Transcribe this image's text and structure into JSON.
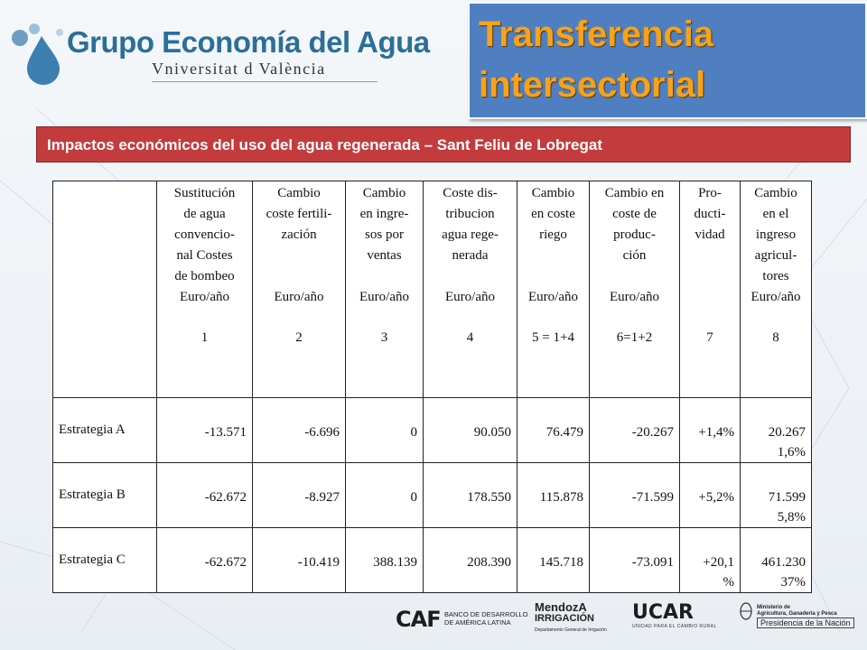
{
  "header": {
    "logo_title": "Grupo Economía del Agua",
    "logo_subtitle": "Vniversitat d València",
    "slide_title": "Transferencia intersectorial",
    "subtitle": "Impactos económicos del uso del agua regenerada – Sant Feliu de Lobregat"
  },
  "table": {
    "columns": [
      {
        "lines": [
          "Sustitución",
          "de agua",
          "convencio-",
          "nal Costes",
          "de bombeo"
        ],
        "unit": "Euro/año",
        "num": "1"
      },
      {
        "lines": [
          "Cambio",
          "coste fertili-",
          "zación"
        ],
        "unit": "Euro/año",
        "num": "2"
      },
      {
        "lines": [
          "Cambio",
          "en ingre-",
          "sos por",
          "ventas"
        ],
        "unit": "Euro/año",
        "num": "3"
      },
      {
        "lines": [
          "Coste dis-",
          "tribucion",
          "agua rege-",
          "nerada"
        ],
        "unit": "Euro/año",
        "num": "4"
      },
      {
        "lines": [
          "Cambio",
          "en coste",
          "riego"
        ],
        "unit": "Euro/año",
        "num": "5 = 1+4"
      },
      {
        "lines": [
          "Cambio en",
          "coste de",
          "produc-",
          "ción"
        ],
        "unit": "Euro/año",
        "num": "6=1+2"
      },
      {
        "lines": [
          "Pro-",
          "ducti-",
          "vidad"
        ],
        "unit": "",
        "num": "7"
      },
      {
        "lines": [
          "Cambio",
          "en el",
          "ingreso",
          "agricul-",
          "tores"
        ],
        "unit": "Euro/año",
        "num": "8"
      }
    ],
    "rows": [
      {
        "label": "Estrategia A",
        "cells": [
          [
            "-13.571"
          ],
          [
            "-6.696"
          ],
          [
            "0"
          ],
          [
            "90.050"
          ],
          [
            "76.479"
          ],
          [
            "-20.267"
          ],
          [
            "+1,4%"
          ],
          [
            "20.267",
            "1,6%"
          ]
        ]
      },
      {
        "label": "Estrategia B",
        "cells": [
          [
            "-62.672"
          ],
          [
            "-8.927"
          ],
          [
            "0"
          ],
          [
            "178.550"
          ],
          [
            "115.878"
          ],
          [
            "-71.599"
          ],
          [
            "+5,2%"
          ],
          [
            "71.599",
            "5,8%"
          ]
        ]
      },
      {
        "label": "Estrategia C",
        "cells": [
          [
            "-62.672"
          ],
          [
            "-10.419"
          ],
          [
            "388.139"
          ],
          [
            "208.390"
          ],
          [
            "145.718"
          ],
          [
            "-73.091"
          ],
          [
            "+20,1",
            "%"
          ],
          [
            "461.230",
            "37%"
          ]
        ]
      }
    ]
  },
  "sponsors": {
    "caf_mark": "CAF",
    "caf_line1": "BANCO DE DESARROLLO",
    "caf_line2": "DE AMÉRICA LATINA",
    "mendoza_line1": "MendozA",
    "mendoza_line2": "IRRIGACIÓN",
    "mendoza_small": "Departamento General de Irrigación",
    "ucar_word": "UCAR",
    "ucar_tag": "UNIDAD PARA EL CAMBIO RURAL",
    "ministerio_line1": "Ministerio de",
    "ministerio_line2": "Agricultura, Ganadería y Pesca",
    "presidencia": "Presidencia de la Nación"
  }
}
